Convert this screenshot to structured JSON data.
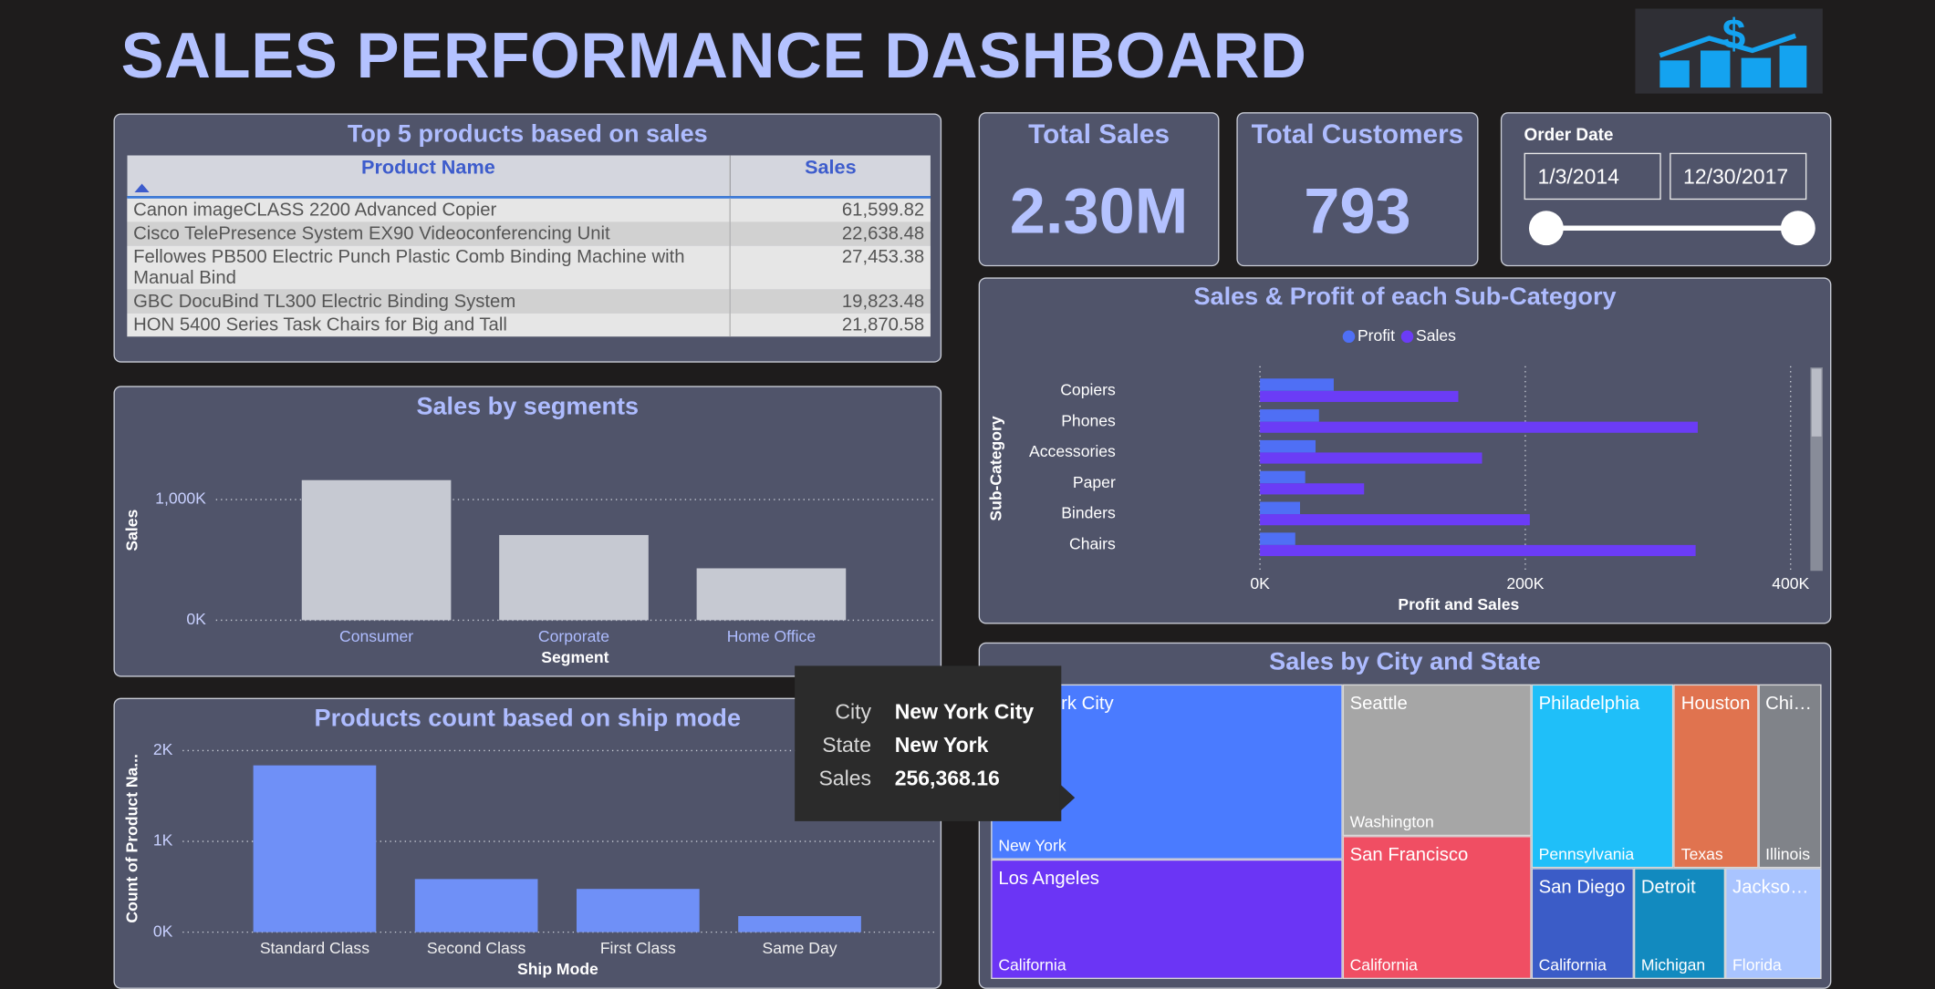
{
  "title": "SALES PERFORMANCE DASHBOARD",
  "table": {
    "title": "Top 5 products based on sales",
    "columns": [
      "Product Name",
      "Sales"
    ],
    "rows": [
      [
        "Canon imageCLASS 2200 Advanced Copier",
        "61,599.82"
      ],
      [
        "Cisco TelePresence System EX90 Videoconferencing Unit",
        "22,638.48"
      ],
      [
        "Fellowes PB500 Electric Punch Plastic Comb Binding Machine with Manual Bind",
        "27,453.38"
      ],
      [
        "GBC DocuBind TL300 Electric Binding System",
        "19,823.48"
      ],
      [
        "HON 5400 Series Task Chairs for Big and Tall",
        "21,870.58"
      ]
    ]
  },
  "kpis": [
    {
      "label": "Total Sales",
      "value": "2.30M"
    },
    {
      "label": "Total Customers",
      "value": "793"
    }
  ],
  "date_filter": {
    "label": "Order Date",
    "start": "1/3/2014",
    "end": "12/30/2017"
  },
  "tooltip": [
    [
      "City",
      "New York City"
    ],
    [
      "State",
      "New York"
    ],
    [
      "Sales",
      "256,368.16"
    ]
  ],
  "chart_data": [
    {
      "type": "bar",
      "title": "Sales by segments",
      "x_label": "Segment",
      "y_label": "Sales",
      "categories": [
        "Consumer",
        "Corporate",
        "Home Office"
      ],
      "values": [
        1161000,
        706000,
        430000
      ],
      "color": "#c6c9d2",
      "ylim": [
        0,
        1400000
      ],
      "yticks": [
        {
          "value": 0,
          "label": "0K"
        },
        {
          "value": 1000000,
          "label": "1,000K"
        }
      ],
      "grid": true
    },
    {
      "type": "bar",
      "title": "Products count based on ship mode",
      "x_label": "Ship Mode",
      "y_label": "Count of Product Na...",
      "categories": [
        "Standard Class",
        "Second Class",
        "First Class",
        "Same Day"
      ],
      "values": [
        1837,
        585,
        476,
        177
      ],
      "color": "#6f90f7",
      "ylim": [
        0,
        2200
      ],
      "yticks": [
        {
          "value": 0,
          "label": "0K"
        },
        {
          "value": 1000,
          "label": "1K"
        },
        {
          "value": 2000,
          "label": "2K"
        }
      ],
      "grid": true
    },
    {
      "type": "bar",
      "horizontal": true,
      "title": "Sales & Profit of each Sub-Category",
      "x_label": "Profit and Sales",
      "y_label": "Sub-Category",
      "categories": [
        "Copiers",
        "Phones",
        "Accessories",
        "Paper",
        "Binders",
        "Chairs"
      ],
      "series": [
        {
          "name": "Profit",
          "color": "#4f6ff5",
          "values": [
            55600,
            44500,
            41900,
            34100,
            30200,
            26600
          ]
        },
        {
          "name": "Sales",
          "color": "#6b3cf6",
          "values": [
            149500,
            330000,
            167400,
            78500,
            203400,
            328400
          ]
        }
      ],
      "xlim": [
        0,
        400000
      ],
      "xticks": [
        {
          "value": 0,
          "label": "0K"
        },
        {
          "value": 200000,
          "label": "200K"
        },
        {
          "value": 400000,
          "label": "400K"
        }
      ],
      "grid": true,
      "legend": "top"
    },
    {
      "type": "treemap",
      "title": "Sales by City and State",
      "categories": [
        "New York City",
        "Los Angeles",
        "Seattle",
        "San Francisco",
        "Philadelphia",
        "Houston",
        "Chicago",
        "San Diego",
        "Detroit",
        "Jacksonville"
      ],
      "states": [
        "New York",
        "California",
        "Washington",
        "California",
        "Pennsylvania",
        "Texas",
        "Illinois",
        "California",
        "Michigan",
        "Florida"
      ],
      "values": [
        256368.16,
        175851,
        119541,
        112669,
        109077,
        64505,
        48540,
        47521,
        42446,
        44713
      ],
      "colors": [
        "#4a7bff",
        "#6b35f5",
        "#a6a6a6",
        "#f04e63",
        "#1fbff9",
        "#e0734f",
        "#808389",
        "#3b5cc7",
        "#128abf",
        "#a9c4ff"
      ]
    }
  ]
}
